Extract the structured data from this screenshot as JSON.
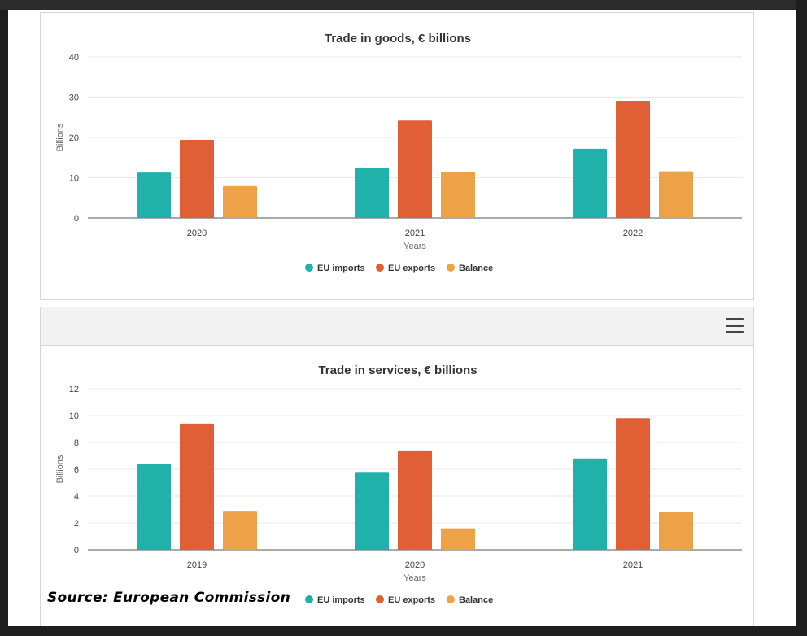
{
  "colors": {
    "imports": "#20b2aa",
    "exports": "#e05f35",
    "balance": "#eda247"
  },
  "source_text": "Source: European Commission",
  "chart_data": [
    {
      "type": "bar",
      "title": "Trade in goods, € billions",
      "xlabel": "Years",
      "ylabel": "Billions",
      "ylim": [
        0,
        40
      ],
      "yticks": [
        0,
        10,
        20,
        30,
        40
      ],
      "categories": [
        "2020",
        "2021",
        "2022"
      ],
      "series": [
        {
          "name": "EU imports",
          "values": [
            11.3,
            12.4,
            17.2
          ]
        },
        {
          "name": "EU exports",
          "values": [
            19.4,
            24.2,
            29.1
          ]
        },
        {
          "name": "Balance",
          "values": [
            7.9,
            11.5,
            11.6
          ]
        }
      ],
      "grid": true,
      "legend": "bottom-center"
    },
    {
      "type": "bar",
      "title": "Trade in services, € billions",
      "xlabel": "Years",
      "ylabel": "Billions",
      "ylim": [
        0,
        12
      ],
      "yticks": [
        0,
        2,
        4,
        6,
        8,
        10,
        12
      ],
      "categories": [
        "2019",
        "2020",
        "2021"
      ],
      "series": [
        {
          "name": "EU imports",
          "values": [
            6.4,
            5.8,
            6.8
          ]
        },
        {
          "name": "EU exports",
          "values": [
            9.4,
            7.4,
            9.8
          ]
        },
        {
          "name": "Balance",
          "values": [
            2.9,
            1.6,
            2.8
          ]
        }
      ],
      "grid": true,
      "legend": "bottom-center"
    }
  ]
}
